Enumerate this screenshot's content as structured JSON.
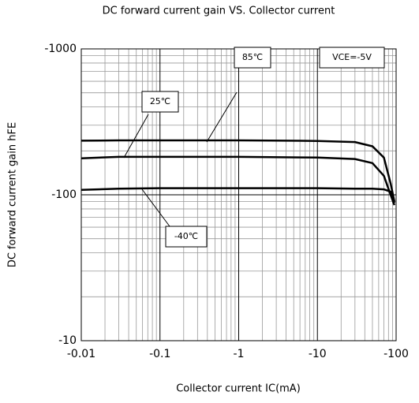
{
  "chart_data": {
    "type": "line",
    "title": "DC forward current gain VS. Collector current",
    "xlabel": "Collector current IC(mA)",
    "ylabel": "DC forward current gain hFE",
    "xscale": "log",
    "yscale": "log",
    "xlim": [
      -0.01,
      -100
    ],
    "ylim": [
      -10,
      -1000
    ],
    "xticks": [
      -0.01,
      -0.1,
      -1,
      -10,
      -100
    ],
    "yticks": [
      -10,
      -100,
      -1000
    ],
    "grid": true,
    "annotations": [
      "85℃",
      "25℃",
      "-40℃",
      "VCE=-5V"
    ],
    "x": [
      -0.01,
      -0.03,
      -0.1,
      -1,
      -10,
      -30,
      -50,
      -70,
      -85,
      -95
    ],
    "series": [
      {
        "name": "85℃",
        "color": "#000000",
        "values": [
          -235,
          -236,
          -236,
          -236,
          -234,
          -230,
          -215,
          -180,
          -120,
          -90
        ]
      },
      {
        "name": "25℃",
        "color": "#000000",
        "values": [
          -178,
          -182,
          -182,
          -182,
          -180,
          -176,
          -165,
          -135,
          -100,
          -85
        ]
      },
      {
        "name": "-40℃",
        "color": "#000000",
        "values": [
          -108,
          -110,
          -111,
          -111,
          -111,
          -110,
          -110,
          -109,
          -105,
          -88
        ]
      }
    ]
  }
}
